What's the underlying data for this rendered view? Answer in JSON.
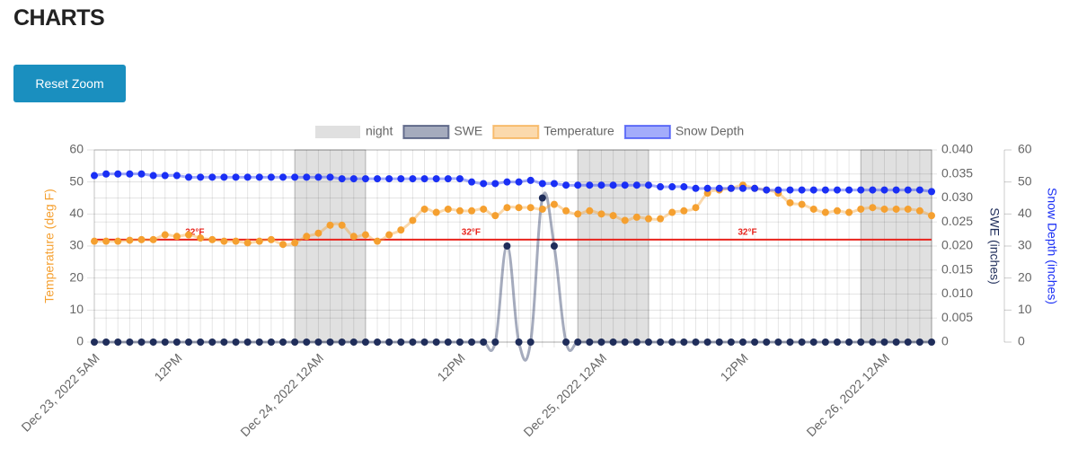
{
  "page": {
    "title": "CHARTS",
    "button": "Reset Zoom"
  },
  "chart_data": {
    "type": "line",
    "categories": [
      "Dec 23, 2022 5AM",
      null,
      null,
      null,
      null,
      null,
      null,
      "12PM",
      null,
      null,
      null,
      null,
      null,
      null,
      null,
      null,
      null,
      null,
      null,
      "Dec 24, 2022 12AM",
      null,
      null,
      null,
      null,
      null,
      null,
      null,
      null,
      null,
      null,
      null,
      "12PM",
      null,
      null,
      null,
      null,
      null,
      null,
      null,
      null,
      null,
      null,
      null,
      "Dec 25, 2022 12AM",
      null,
      null,
      null,
      null,
      null,
      null,
      null,
      null,
      null,
      null,
      null,
      "12PM",
      null,
      null,
      null,
      null,
      null,
      null,
      null,
      null,
      null,
      null,
      null,
      "Dec 26, 2022 12AM",
      null,
      null,
      null,
      null
    ],
    "ylabel": "Temperature (deg F)",
    "y2label": "SWE (inches)",
    "y3label": "Snow Depth (inches)",
    "ylim": [
      0,
      60
    ],
    "yticks": [
      0,
      10,
      20,
      30,
      40,
      50,
      60
    ],
    "y2lim": [
      0,
      0.04
    ],
    "y2ticks": [
      0,
      0.005,
      {
        "value": 0.01,
        "label": "0.010"
      },
      0.015,
      {
        "value": 0.02,
        "label": "0.020"
      },
      0.025,
      {
        "value": 0.03,
        "label": "0.030"
      },
      0.035,
      {
        "value": 0.04,
        "label": "0.040"
      }
    ],
    "y3lim": [
      0,
      60
    ],
    "y3ticks": [
      0,
      10,
      20,
      30,
      40,
      50,
      60
    ],
    "grid": true,
    "legend": "top",
    "night": {
      "name": "night",
      "color": "#e0e0e0",
      "ranges": [
        [
          17,
          23
        ],
        [
          41,
          47
        ],
        [
          65,
          71
        ]
      ]
    },
    "threshold": {
      "value": 32,
      "color": "#e8231c",
      "labels": [
        "32°F",
        "32°F",
        "32°F"
      ]
    },
    "series": [
      {
        "name": "SWE",
        "color": "#1f2d5a",
        "axis": "y2",
        "values": [
          0,
          0,
          0,
          0,
          0,
          0,
          0,
          0,
          0,
          0,
          0,
          0,
          0,
          0,
          0,
          0,
          0,
          0,
          0,
          0,
          0,
          0,
          0,
          0,
          0,
          0,
          0,
          0,
          0,
          0,
          0,
          0,
          0,
          0,
          0,
          0.02,
          0,
          0,
          0.03,
          0.02,
          0,
          0,
          0,
          0,
          0,
          0,
          0,
          0,
          0,
          0,
          0,
          0,
          0,
          0,
          0,
          0,
          0,
          0,
          0,
          0,
          0,
          0,
          0,
          0,
          0,
          0,
          0,
          0,
          0,
          0,
          0,
          0
        ]
      },
      {
        "name": "Temperature",
        "color": "#f5a030",
        "values": [
          31.5,
          31.5,
          31.5,
          31.8,
          32,
          32,
          33.5,
          33,
          33.5,
          32.5,
          32,
          31.5,
          31.5,
          31,
          31.5,
          32,
          30.5,
          31,
          33,
          34,
          36.5,
          36.5,
          33,
          33.5,
          31.5,
          33.5,
          35,
          38,
          41.5,
          40.5,
          41.5,
          41,
          41,
          41.5,
          39.5,
          42,
          42,
          42,
          41.5,
          43,
          41,
          40,
          41,
          40,
          39.5,
          38,
          39,
          38.5,
          38.5,
          40.5,
          41,
          42,
          46.5,
          47.5,
          48,
          49,
          48,
          47.5,
          46.5,
          43.5,
          43,
          41.5,
          40.5,
          41,
          40.5,
          41.5,
          42,
          41.5,
          41.5,
          41.5,
          41,
          39.5
        ]
      },
      {
        "name": "Snow Depth",
        "color": "#1a2ff5",
        "axis": "y3",
        "values": [
          52,
          52.5,
          52.5,
          52.5,
          52.5,
          52,
          52,
          52,
          51.5,
          51.5,
          51.5,
          51.5,
          51.5,
          51.5,
          51.5,
          51.5,
          51.5,
          51.5,
          51.5,
          51.5,
          51.5,
          51,
          51,
          51,
          51,
          51,
          51,
          51,
          51,
          51,
          51,
          51,
          50,
          49.5,
          49.5,
          50,
          50,
          50.5,
          49.5,
          49.5,
          49,
          49,
          49,
          49,
          49,
          49,
          49,
          49,
          48.5,
          48.5,
          48.5,
          48,
          48,
          48,
          48,
          48,
          48,
          47.5,
          47.5,
          47.5,
          47.5,
          47.5,
          47.5,
          47.5,
          47.5,
          47.5,
          47.5,
          47.5,
          47.5,
          47.5,
          47.5,
          47
        ]
      }
    ]
  }
}
